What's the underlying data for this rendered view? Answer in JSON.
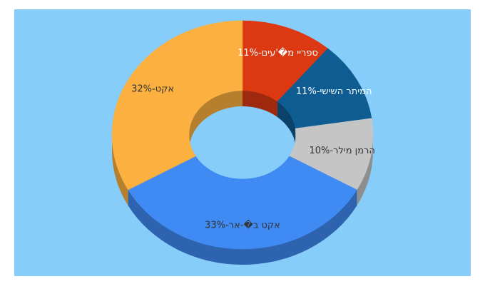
{
  "colors": {
    "background": "#87cdf9"
  },
  "chart_data": {
    "type": "pie",
    "subtype": "donut-3d",
    "title": "",
    "slices": [
      {
        "label": "ספריי מ�עים",
        "value": 11,
        "display": "ספריי מ�'עים-11%",
        "color": "#dc3912",
        "text_color": "#ffffff"
      },
      {
        "label": "המיתר השישי",
        "value": 11,
        "display": "המיתר השישי-11%",
        "color": "#0e5c92",
        "text_color": "#ffffff"
      },
      {
        "label": "הרמן מילר",
        "value": 10,
        "display": "הרמן מילר-10%",
        "color": "#c5c5c5",
        "text_color": "#333333"
      },
      {
        "label": "אקט ב�-אר",
        "value": 33,
        "display": "אקט ב�-אר-33%",
        "color": "#3f8af3",
        "text_color": "#333333"
      },
      {
        "label": "אקט",
        "value": 32,
        "display": "אקט-32%",
        "color": "#fbb040",
        "text_color": "#333333"
      }
    ]
  }
}
